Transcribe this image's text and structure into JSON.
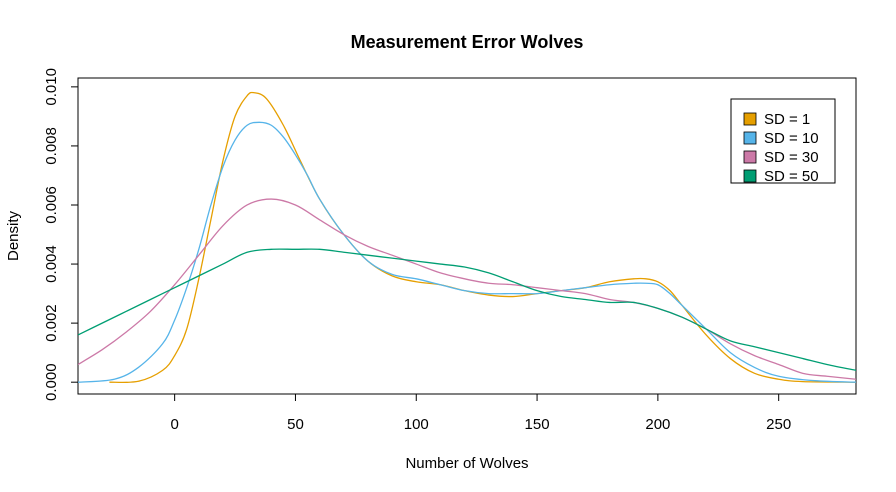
{
  "chart_data": {
    "type": "line",
    "title": "Measurement Error Wolves",
    "xlabel": "Number of Wolves",
    "ylabel": "Density",
    "xlim": [
      -40,
      282
    ],
    "ylim": [
      -0.0004,
      0.0103
    ],
    "xticks": [
      0,
      50,
      100,
      150,
      200,
      250
    ],
    "yticks": [
      0.0,
      0.002,
      0.004,
      0.006,
      0.008,
      0.01
    ],
    "ytick_labels": [
      "0.000",
      "0.002",
      "0.004",
      "0.006",
      "0.008",
      "0.010"
    ],
    "grid": false,
    "legend_position": "top-right",
    "series": [
      {
        "name": "SD = 1",
        "color": "#E69F00",
        "points": [
          [
            -27,
            0.0
          ],
          [
            -15,
            3e-05
          ],
          [
            -5,
            0.0004
          ],
          [
            0,
            0.0009
          ],
          [
            5,
            0.0018
          ],
          [
            10,
            0.0035
          ],
          [
            15,
            0.0055
          ],
          [
            20,
            0.0075
          ],
          [
            25,
            0.009
          ],
          [
            30,
            0.0097
          ],
          [
            33,
            0.0098
          ],
          [
            38,
            0.0096
          ],
          [
            45,
            0.0087
          ],
          [
            52,
            0.0075
          ],
          [
            60,
            0.0062
          ],
          [
            70,
            0.005
          ],
          [
            80,
            0.0041
          ],
          [
            90,
            0.0036
          ],
          [
            100,
            0.0034
          ],
          [
            110,
            0.0033
          ],
          [
            120,
            0.0031
          ],
          [
            130,
            0.00295
          ],
          [
            140,
            0.0029
          ],
          [
            150,
            0.003
          ],
          [
            160,
            0.0031
          ],
          [
            170,
            0.0032
          ],
          [
            180,
            0.0034
          ],
          [
            190,
            0.0035
          ],
          [
            195,
            0.0035
          ],
          [
            200,
            0.0034
          ],
          [
            205,
            0.0031
          ],
          [
            210,
            0.0026
          ],
          [
            220,
            0.0016
          ],
          [
            230,
            0.0008
          ],
          [
            240,
            0.0003
          ],
          [
            250,
            0.0001
          ],
          [
            260,
            2e-05
          ],
          [
            282,
            0.0
          ]
        ]
      },
      {
        "name": "SD = 10",
        "color": "#56B4E9",
        "points": [
          [
            -40,
            0.0
          ],
          [
            -25,
            0.0001
          ],
          [
            -15,
            0.0005
          ],
          [
            -5,
            0.0013
          ],
          [
            0,
            0.0021
          ],
          [
            5,
            0.0032
          ],
          [
            10,
            0.0045
          ],
          [
            15,
            0.006
          ],
          [
            20,
            0.0073
          ],
          [
            25,
            0.0082
          ],
          [
            30,
            0.0087
          ],
          [
            35,
            0.0088
          ],
          [
            40,
            0.0087
          ],
          [
            45,
            0.0083
          ],
          [
            50,
            0.0077
          ],
          [
            55,
            0.007
          ],
          [
            60,
            0.0062
          ],
          [
            70,
            0.005
          ],
          [
            80,
            0.0041
          ],
          [
            90,
            0.00365
          ],
          [
            100,
            0.0035
          ],
          [
            110,
            0.0033
          ],
          [
            120,
            0.0031
          ],
          [
            130,
            0.003
          ],
          [
            140,
            0.003
          ],
          [
            150,
            0.003
          ],
          [
            160,
            0.0031
          ],
          [
            170,
            0.0032
          ],
          [
            180,
            0.0033
          ],
          [
            190,
            0.00335
          ],
          [
            195,
            0.00335
          ],
          [
            200,
            0.0033
          ],
          [
            205,
            0.003
          ],
          [
            210,
            0.0026
          ],
          [
            220,
            0.0018
          ],
          [
            230,
            0.001
          ],
          [
            240,
            0.0005
          ],
          [
            250,
            0.0002
          ],
          [
            265,
            5e-05
          ],
          [
            282,
            0.0
          ]
        ]
      },
      {
        "name": "SD = 30",
        "color": "#CC79A7",
        "points": [
          [
            -40,
            0.0006
          ],
          [
            -30,
            0.0011
          ],
          [
            -20,
            0.0017
          ],
          [
            -10,
            0.0024
          ],
          [
            0,
            0.0033
          ],
          [
            10,
            0.0043
          ],
          [
            20,
            0.0053
          ],
          [
            30,
            0.006
          ],
          [
            40,
            0.0062
          ],
          [
            50,
            0.006
          ],
          [
            60,
            0.0055
          ],
          [
            70,
            0.005
          ],
          [
            80,
            0.0046
          ],
          [
            90,
            0.0043
          ],
          [
            100,
            0.004
          ],
          [
            110,
            0.0037
          ],
          [
            120,
            0.0035
          ],
          [
            130,
            0.00335
          ],
          [
            140,
            0.0033
          ],
          [
            150,
            0.0032
          ],
          [
            160,
            0.0031
          ],
          [
            170,
            0.003
          ],
          [
            180,
            0.0028
          ],
          [
            190,
            0.0027
          ],
          [
            200,
            0.0025
          ],
          [
            210,
            0.0022
          ],
          [
            220,
            0.0018
          ],
          [
            230,
            0.0013
          ],
          [
            240,
            0.0009
          ],
          [
            250,
            0.0006
          ],
          [
            260,
            0.0003
          ],
          [
            270,
            0.0002
          ],
          [
            282,
            0.0001
          ]
        ]
      },
      {
        "name": "SD = 50",
        "color": "#009E73",
        "points": [
          [
            -40,
            0.0016
          ],
          [
            -30,
            0.002
          ],
          [
            -20,
            0.0024
          ],
          [
            -10,
            0.0028
          ],
          [
            0,
            0.0032
          ],
          [
            10,
            0.0036
          ],
          [
            20,
            0.004
          ],
          [
            30,
            0.0044
          ],
          [
            40,
            0.0045
          ],
          [
            50,
            0.0045
          ],
          [
            60,
            0.0045
          ],
          [
            70,
            0.0044
          ],
          [
            80,
            0.0043
          ],
          [
            90,
            0.0042
          ],
          [
            100,
            0.0041
          ],
          [
            110,
            0.004
          ],
          [
            120,
            0.0039
          ],
          [
            130,
            0.0037
          ],
          [
            140,
            0.0034
          ],
          [
            150,
            0.0031
          ],
          [
            160,
            0.0029
          ],
          [
            170,
            0.0028
          ],
          [
            180,
            0.0027
          ],
          [
            190,
            0.0027
          ],
          [
            200,
            0.0025
          ],
          [
            210,
            0.0022
          ],
          [
            220,
            0.0018
          ],
          [
            230,
            0.0014
          ],
          [
            240,
            0.0012
          ],
          [
            250,
            0.001
          ],
          [
            260,
            0.0008
          ],
          [
            270,
            0.0006
          ],
          [
            282,
            0.0004
          ]
        ]
      }
    ]
  }
}
